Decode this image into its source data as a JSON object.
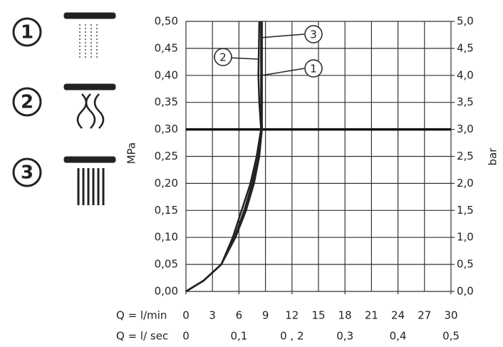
{
  "chart_data": {
    "type": "line",
    "y_label": "MPa",
    "y2_label": "bar",
    "x_label": "Q = l/min",
    "x2_label": "Q = l/ sec",
    "xlim": [
      0,
      30
    ],
    "xticks": [
      0,
      3,
      6,
      9,
      12,
      15,
      18,
      21,
      24,
      27,
      30
    ],
    "x2lim": [
      0,
      0.5
    ],
    "x2ticks": [
      0,
      {
        "value": 0.1,
        "label": "0,1"
      },
      {
        "value": 0.2,
        "label": "0 , 2"
      },
      {
        "value": 0.3,
        "label": "0,3"
      },
      {
        "value": 0.4,
        "label": "0,4"
      },
      {
        "value": 0.5,
        "label": "0,5"
      }
    ],
    "ylim": [
      0,
      0.5
    ],
    "yticks": [
      {
        "value": 0,
        "label": "0,00"
      },
      {
        "value": 0.05,
        "label": "0,05"
      },
      {
        "value": 0.1,
        "label": "0,10"
      },
      {
        "value": 0.15,
        "label": "0,15"
      },
      {
        "value": 0.2,
        "label": "0,20"
      },
      {
        "value": 0.25,
        "label": "0,25"
      },
      {
        "value": 0.3,
        "label": "0,30"
      },
      {
        "value": 0.35,
        "label": "0,35"
      },
      {
        "value": 0.4,
        "label": "0,40"
      },
      {
        "value": 0.45,
        "label": "0,45"
      },
      {
        "value": 0.5,
        "label": "0,50"
      }
    ],
    "y2lim": [
      0,
      5
    ],
    "y2ticks": [
      {
        "value": 0,
        "label": "0,0"
      },
      {
        "value": 0.5,
        "label": "0,5"
      },
      {
        "value": 1,
        "label": "1,0"
      },
      {
        "value": 1.5,
        "label": "1,5"
      },
      {
        "value": 2,
        "label": "2,0"
      },
      {
        "value": 2.5,
        "label": "2,5"
      },
      {
        "value": 3,
        "label": "3,0"
      },
      {
        "value": 3.5,
        "label": "3,5"
      },
      {
        "value": 4,
        "label": "4,0"
      },
      {
        "value": 4.5,
        "label": "4,5"
      },
      {
        "value": 5,
        "label": "5,0"
      }
    ],
    "hline": 0.3,
    "grid": true,
    "series": [
      {
        "name": "1",
        "color": "#222222",
        "x": [
          0,
          2,
          4,
          5.5,
          6.6,
          7.5,
          8.2,
          8.6,
          8.5,
          8.5,
          8.5
        ],
        "values": [
          0,
          0.02,
          0.05,
          0.1,
          0.15,
          0.2,
          0.25,
          0.3,
          0.35,
          0.4,
          0.5
        ]
      },
      {
        "name": "2",
        "color": "#222222",
        "x": [
          0,
          2,
          4,
          5.3,
          6.3,
          7.3,
          8.0,
          8.5,
          8.3,
          8.2,
          8.3
        ],
        "values": [
          0,
          0.02,
          0.05,
          0.1,
          0.15,
          0.2,
          0.25,
          0.3,
          0.35,
          0.4,
          0.5
        ]
      },
      {
        "name": "3",
        "color": "#222222",
        "x": [
          0,
          2,
          4,
          5.6,
          6.8,
          7.7,
          8.3,
          8.6,
          8.6,
          8.6,
          8.6
        ],
        "values": [
          0,
          0.02,
          0.05,
          0.1,
          0.15,
          0.2,
          0.25,
          0.3,
          0.35,
          0.4,
          0.5
        ]
      }
    ]
  }
}
